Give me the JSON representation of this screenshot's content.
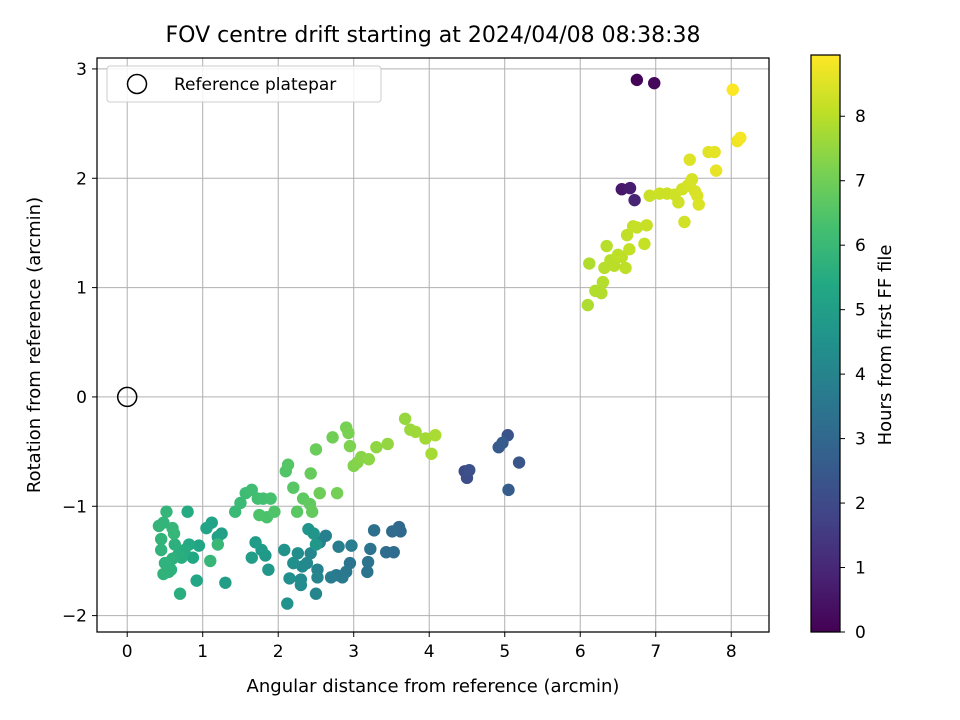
{
  "chart_data": {
    "type": "scatter",
    "title": "FOV centre drift starting at 2024/04/08 08:38:38",
    "xlabel": "Angular distance from reference (arcmin)",
    "ylabel": "Rotation from reference (arcmin)",
    "xlim": [
      -0.4,
      8.5
    ],
    "ylim": [
      -2.15,
      3.1
    ],
    "xticks": [
      "0",
      "1",
      "2",
      "3",
      "4",
      "5",
      "6",
      "7",
      "8"
    ],
    "yticks": [
      "−2",
      "−1",
      "0",
      "1",
      "2",
      "3"
    ],
    "grid": true,
    "legend": {
      "placement": "top-left",
      "entries": [
        "Reference platepar"
      ]
    },
    "reference_point": {
      "x": 0,
      "y": 0,
      "label": "Reference platepar"
    },
    "colorbar": {
      "label": "Hours from first FF file",
      "colormap": "viridis",
      "range": [
        0,
        8.95
      ],
      "ticks": [
        "0",
        "1",
        "2",
        "3",
        "4",
        "5",
        "6",
        "7",
        "8"
      ]
    },
    "points": [
      [
        6.75,
        2.9,
        0.1
      ],
      [
        6.98,
        2.87,
        0.15
      ],
      [
        6.55,
        1.9,
        0.6
      ],
      [
        6.66,
        1.91,
        0.7
      ],
      [
        6.72,
        1.8,
        0.9
      ],
      [
        4.47,
        -0.68,
        2.0
      ],
      [
        4.5,
        -0.74,
        2.1
      ],
      [
        4.53,
        -0.67,
        2.2
      ],
      [
        5.04,
        -0.35,
        2.3
      ],
      [
        5.19,
        -0.6,
        2.4
      ],
      [
        4.92,
        -0.46,
        2.5
      ],
      [
        4.97,
        -0.42,
        2.55
      ],
      [
        5.05,
        -0.85,
        2.6
      ],
      [
        3.6,
        -1.19,
        3.0
      ],
      [
        3.62,
        -1.23,
        3.05
      ],
      [
        3.51,
        -1.23,
        3.1
      ],
      [
        3.43,
        -1.42,
        3.15
      ],
      [
        3.53,
        -1.42,
        3.2
      ],
      [
        3.27,
        -1.22,
        3.3
      ],
      [
        3.22,
        -1.39,
        3.35
      ],
      [
        3.19,
        -1.51,
        3.4
      ],
      [
        3.18,
        -1.6,
        3.45
      ],
      [
        2.95,
        -1.52,
        3.5
      ],
      [
        2.9,
        -1.6,
        3.55
      ],
      [
        2.85,
        -1.65,
        3.6
      ],
      [
        2.77,
        -1.63,
        3.65
      ],
      [
        2.7,
        -1.65,
        3.7
      ],
      [
        2.97,
        -1.36,
        3.75
      ],
      [
        2.8,
        -1.37,
        3.8
      ],
      [
        2.63,
        -1.27,
        3.85
      ],
      [
        2.55,
        -1.33,
        3.9
      ],
      [
        2.52,
        -1.58,
        3.95
      ],
      [
        2.52,
        -1.65,
        4.0
      ],
      [
        2.5,
        -1.8,
        4.05
      ],
      [
        2.43,
        -1.43,
        4.1
      ],
      [
        2.38,
        -1.52,
        4.15
      ],
      [
        2.32,
        -1.55,
        4.2
      ],
      [
        2.3,
        -1.67,
        4.25
      ],
      [
        2.3,
        -1.72,
        4.3
      ],
      [
        2.26,
        -1.43,
        4.35
      ],
      [
        2.2,
        -1.52,
        4.4
      ],
      [
        2.15,
        -1.66,
        4.45
      ],
      [
        2.12,
        -1.89,
        4.5
      ],
      [
        2.08,
        -1.4,
        4.55
      ],
      [
        2.4,
        -1.21,
        4.6
      ],
      [
        2.47,
        -1.25,
        4.65
      ],
      [
        2.5,
        -1.35,
        4.7
      ],
      [
        1.87,
        -1.58,
        4.75
      ],
      [
        1.83,
        -1.45,
        4.8
      ],
      [
        1.78,
        -1.4,
        4.85
      ],
      [
        1.7,
        -1.33,
        4.9
      ],
      [
        1.65,
        -1.47,
        4.95
      ],
      [
        1.3,
        -1.7,
        5.0
      ],
      [
        1.25,
        -1.25,
        5.05
      ],
      [
        1.2,
        -1.28,
        5.1
      ],
      [
        1.12,
        -1.15,
        5.15
      ],
      [
        1.05,
        -1.2,
        5.2
      ],
      [
        0.95,
        -1.36,
        5.25
      ],
      [
        0.92,
        -1.68,
        5.3
      ],
      [
        0.87,
        -1.47,
        5.35
      ],
      [
        0.82,
        -1.35,
        5.4
      ],
      [
        0.8,
        -1.05,
        5.45
      ],
      [
        0.76,
        -1.4,
        5.5
      ],
      [
        0.72,
        -1.47,
        5.55
      ],
      [
        0.7,
        -1.8,
        5.6
      ],
      [
        0.67,
        -1.45,
        5.62
      ],
      [
        0.63,
        -1.35,
        5.65
      ],
      [
        0.6,
        -1.48,
        5.68
      ],
      [
        0.58,
        -1.58,
        5.7
      ],
      [
        0.55,
        -1.6,
        5.72
      ],
      [
        0.5,
        -1.52,
        5.74
      ],
      [
        0.48,
        -1.62,
        5.76
      ],
      [
        0.45,
        -1.4,
        5.78
      ],
      [
        0.45,
        -1.3,
        5.8
      ],
      [
        0.48,
        -1.15,
        5.82
      ],
      [
        0.42,
        -1.18,
        5.84
      ],
      [
        0.52,
        -1.05,
        5.86
      ],
      [
        0.6,
        -1.2,
        5.88
      ],
      [
        0.62,
        -1.25,
        5.9
      ],
      [
        1.1,
        -1.5,
        5.92
      ],
      [
        1.2,
        -1.35,
        5.94
      ],
      [
        1.43,
        -1.05,
        6.0
      ],
      [
        1.5,
        -0.97,
        6.05
      ],
      [
        1.57,
        -0.88,
        6.1
      ],
      [
        1.65,
        -0.85,
        6.15
      ],
      [
        1.73,
        -0.93,
        6.2
      ],
      [
        1.8,
        -0.93,
        6.25
      ],
      [
        1.9,
        -0.93,
        6.3
      ],
      [
        1.85,
        -1.1,
        6.35
      ],
      [
        1.75,
        -1.08,
        6.4
      ],
      [
        1.95,
        -1.05,
        6.45
      ],
      [
        2.1,
        -0.68,
        6.5
      ],
      [
        2.13,
        -0.62,
        6.55
      ],
      [
        2.2,
        -0.83,
        6.6
      ],
      [
        2.25,
        -1.05,
        6.65
      ],
      [
        2.33,
        -0.93,
        6.7
      ],
      [
        2.42,
        -0.98,
        6.75
      ],
      [
        2.45,
        -1.05,
        6.8
      ],
      [
        2.43,
        -0.7,
        6.85
      ],
      [
        2.5,
        -0.48,
        6.9
      ],
      [
        2.55,
        -0.88,
        6.95
      ],
      [
        2.72,
        -0.37,
        7.0
      ],
      [
        2.78,
        -0.88,
        7.05
      ],
      [
        2.9,
        -0.28,
        7.1
      ],
      [
        2.93,
        -0.33,
        7.15
      ],
      [
        2.95,
        -0.45,
        7.2
      ],
      [
        3.0,
        -0.63,
        7.25
      ],
      [
        3.05,
        -0.6,
        7.3
      ],
      [
        3.1,
        -0.55,
        7.35
      ],
      [
        3.2,
        -0.57,
        7.4
      ],
      [
        3.3,
        -0.46,
        7.45
      ],
      [
        3.45,
        -0.43,
        7.5
      ],
      [
        3.68,
        -0.2,
        7.55
      ],
      [
        3.75,
        -0.3,
        7.6
      ],
      [
        3.82,
        -0.32,
        7.65
      ],
      [
        3.95,
        -0.38,
        7.7
      ],
      [
        4.03,
        -0.52,
        7.75
      ],
      [
        4.08,
        -0.35,
        7.8
      ],
      [
        6.1,
        0.84,
        7.85
      ],
      [
        6.12,
        1.22,
        7.88
      ],
      [
        6.2,
        0.97,
        7.9
      ],
      [
        6.28,
        0.95,
        7.92
      ],
      [
        6.3,
        1.05,
        7.94
      ],
      [
        6.32,
        1.18,
        7.96
      ],
      [
        6.35,
        1.38,
        7.98
      ],
      [
        6.4,
        1.25,
        8.0
      ],
      [
        6.45,
        1.2,
        8.02
      ],
      [
        6.5,
        1.3,
        8.04
      ],
      [
        6.55,
        1.28,
        8.06
      ],
      [
        6.6,
        1.18,
        8.08
      ],
      [
        6.62,
        1.48,
        8.1
      ],
      [
        6.65,
        1.35,
        8.12
      ],
      [
        6.7,
        1.56,
        8.14
      ],
      [
        6.75,
        1.55,
        8.16
      ],
      [
        6.85,
        1.4,
        8.18
      ],
      [
        6.88,
        1.57,
        8.2
      ],
      [
        6.92,
        1.84,
        8.22
      ],
      [
        7.05,
        1.86,
        8.24
      ],
      [
        7.15,
        1.86,
        8.26
      ],
      [
        7.25,
        1.85,
        8.28
      ],
      [
        7.3,
        1.78,
        8.3
      ],
      [
        7.35,
        1.9,
        8.32
      ],
      [
        7.38,
        1.6,
        8.34
      ],
      [
        7.42,
        1.93,
        8.36
      ],
      [
        7.45,
        1.95,
        8.38
      ],
      [
        7.48,
        1.99,
        8.4
      ],
      [
        7.52,
        1.88,
        8.42
      ],
      [
        7.55,
        1.84,
        8.44
      ],
      [
        7.57,
        1.76,
        8.46
      ],
      [
        7.45,
        2.17,
        8.5
      ],
      [
        7.7,
        2.24,
        8.55
      ],
      [
        7.78,
        2.24,
        8.6
      ],
      [
        7.8,
        2.07,
        8.65
      ],
      [
        8.08,
        2.34,
        8.75
      ],
      [
        8.12,
        2.37,
        8.82
      ],
      [
        8.02,
        2.81,
        8.93
      ]
    ]
  }
}
